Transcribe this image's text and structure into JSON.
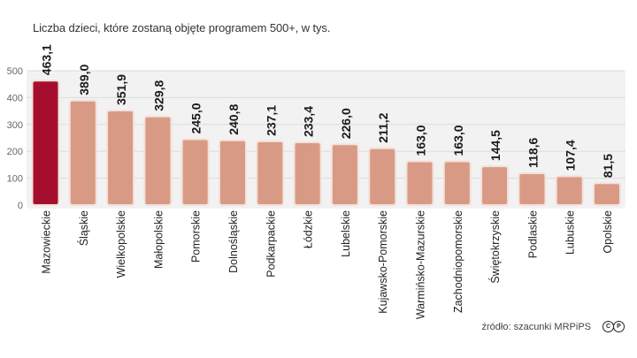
{
  "chart_data": {
    "type": "bar",
    "title": "Liczba dzieci, które zostaną objęte programem 500+, w tys.",
    "xlabel": "",
    "ylabel": "",
    "ylim": [
      0,
      500
    ],
    "yticks": [
      "0",
      "100",
      "200",
      "300",
      "400",
      "500"
    ],
    "grid": true,
    "categories": [
      "Mazowieckie",
      "Śląskie",
      "Wielkopolskie",
      "Małopolskie",
      "Pomorskie",
      "Dolnośląskie",
      "Podkarpackie",
      "Łódzkie",
      "Lubelskie",
      "Kujawsko-Pomorskie",
      "Warmińsko-Mazurskie",
      "Zachodniopomorskie",
      "Świętokrzyskie",
      "Podlaskie",
      "Lubuskie",
      "Opolskie"
    ],
    "values": [
      463.1,
      389.0,
      351.9,
      329.8,
      245.0,
      240.8,
      237.1,
      233.4,
      226.0,
      211.2,
      163.0,
      163.0,
      144.5,
      118.6,
      107.4,
      81.5
    ],
    "value_labels": [
      "463,1",
      "389,0",
      "351,9",
      "329,8",
      "245,0",
      "240,8",
      "237,1",
      "233,4",
      "226,0",
      "211,2",
      "163,0",
      "163,0",
      "144,5",
      "118,6",
      "107,4",
      "81,5"
    ],
    "highlight_index": 0,
    "colors": {
      "highlight": "#a50f2d",
      "bar": "#d99a85",
      "bar_border": "#f3e1da",
      "panel": "#f2f2f2",
      "grid": "#dcdcdc"
    }
  },
  "footer": {
    "source": "źródło: szacunki MRPiPS",
    "license_icons": [
      "C",
      "P"
    ]
  }
}
